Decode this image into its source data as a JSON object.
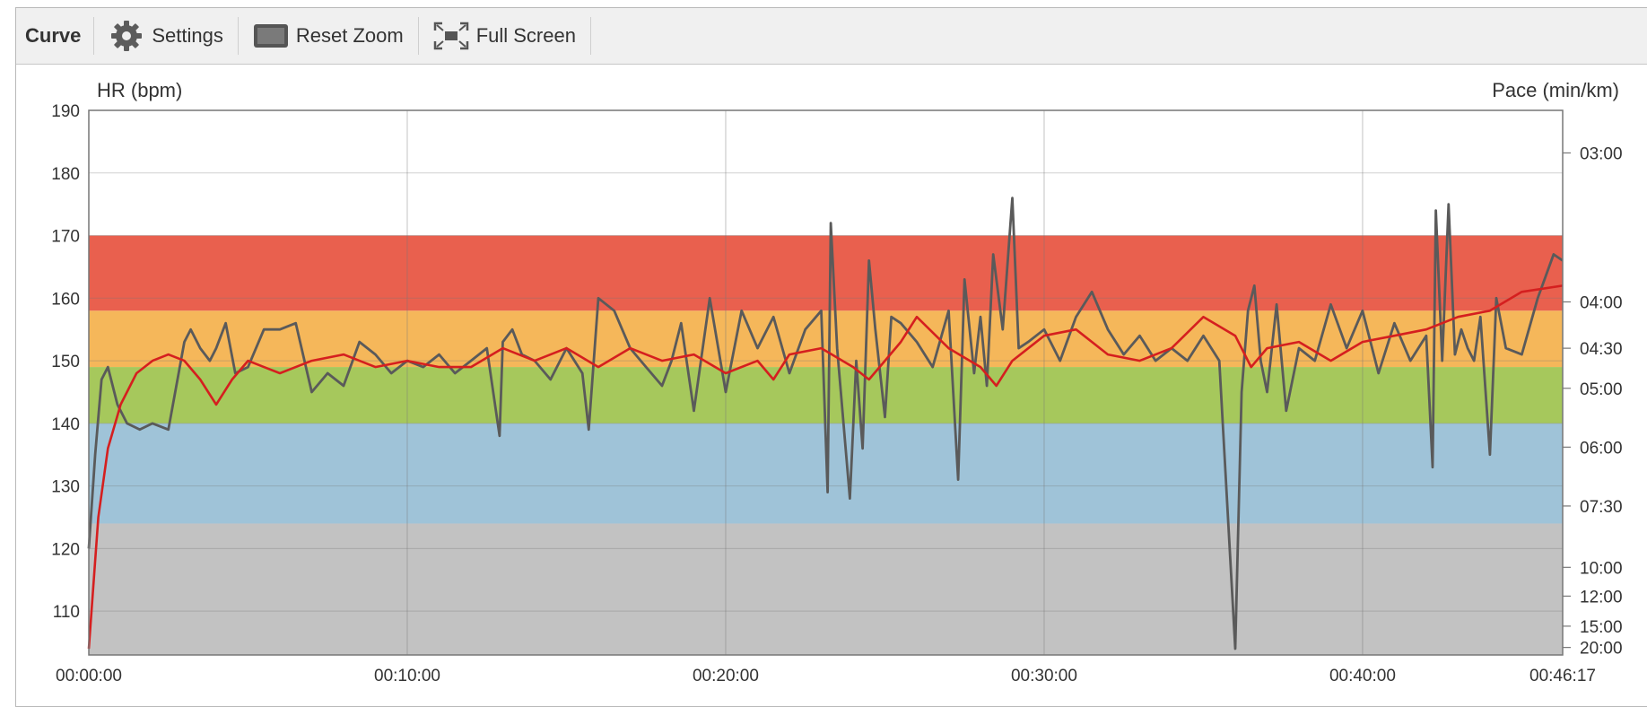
{
  "toolbar": {
    "title": "Curve",
    "settings_label": "Settings",
    "reset_zoom_label": "Reset Zoom",
    "full_screen_label": "Full Screen"
  },
  "icons": {
    "settings": "gear-icon",
    "reset_zoom": "reset-zoom-icon",
    "full_screen": "full-screen-icon"
  },
  "chart_data": {
    "type": "line",
    "x_unit": "elapsed time (hh:mm:ss)",
    "xlim": [
      "00:00:00",
      "00:46:17"
    ],
    "x_tick_labels": [
      "00:00:00",
      "00:10:00",
      "00:20:00",
      "00:30:00",
      "00:40:00",
      "00:46:17"
    ],
    "ylabel_left": "HR (bpm)",
    "ylim_left": [
      103,
      190
    ],
    "y_ticks_left": [
      110,
      120,
      130,
      140,
      150,
      160,
      170,
      180,
      190
    ],
    "ylabel_right": "Pace (min/km)",
    "y_tick_labels_right": [
      {
        "label": "03:00",
        "hr_equiv": 183.2
      },
      {
        "label": "04:00",
        "hr_equiv": 159.4
      },
      {
        "label": "04:30",
        "hr_equiv": 152.0
      },
      {
        "label": "05:00",
        "hr_equiv": 145.6
      },
      {
        "label": "06:00",
        "hr_equiv": 136.2
      },
      {
        "label": "07:30",
        "hr_equiv": 126.8
      },
      {
        "label": "10:00",
        "hr_equiv": 117.0
      },
      {
        "label": "12:00",
        "hr_equiv": 112.4
      },
      {
        "label": "15:00",
        "hr_equiv": 107.6
      },
      {
        "label": "20:00",
        "hr_equiv": 104.2
      }
    ],
    "grid": true,
    "zones": [
      {
        "from": 103,
        "to": 124,
        "color": "#c2c2c2"
      },
      {
        "from": 124,
        "to": 140,
        "color": "#9fc3d8"
      },
      {
        "from": 140,
        "to": 149,
        "color": "#a6c85c"
      },
      {
        "from": 149,
        "to": 158,
        "color": "#f5b75a"
      },
      {
        "from": 158,
        "to": 170,
        "color": "#e9604e"
      }
    ],
    "series": [
      {
        "color": "#d51f1f",
        "axis": "left",
        "x_minutes": [
          0,
          0.3,
          0.6,
          1.0,
          1.5,
          2.0,
          2.5,
          3.0,
          3.5,
          4.0,
          4.5,
          5.0,
          5.5,
          6.0,
          6.5,
          7.0,
          8.0,
          9.0,
          10.0,
          11.0,
          12.0,
          13.0,
          14.0,
          15.0,
          16.0,
          17.0,
          18.0,
          19.0,
          20.0,
          21.0,
          21.5,
          22.0,
          23.0,
          24.0,
          24.5,
          25.0,
          25.5,
          26.0,
          27.0,
          28.0,
          28.5,
          29.0,
          30.0,
          31.0,
          32.0,
          33.0,
          34.0,
          35.0,
          36.0,
          36.5,
          37.0,
          38.0,
          39.0,
          40.0,
          41.0,
          42.0,
          43.0,
          44.0,
          45.0,
          46.28
        ],
        "values": [
          104,
          125,
          136,
          143,
          148,
          150,
          151,
          150,
          147,
          143,
          147,
          150,
          149,
          148,
          149,
          150,
          151,
          149,
          150,
          149,
          149,
          152,
          150,
          152,
          149,
          152,
          150,
          151,
          148,
          150,
          147,
          151,
          152,
          149,
          147,
          150,
          153,
          157,
          152,
          149,
          146,
          150,
          154,
          155,
          151,
          150,
          152,
          157,
          154,
          149,
          152,
          153,
          150,
          153,
          154,
          155,
          157,
          158,
          161,
          162
        ]
      },
      {
        "color": "#5a5a5a",
        "axis": "right",
        "x_minutes": [
          0,
          0.2,
          0.4,
          0.6,
          0.9,
          1.2,
          1.6,
          2.0,
          2.5,
          3.0,
          3.2,
          3.5,
          3.8,
          4.0,
          4.3,
          4.6,
          5.0,
          5.5,
          6.0,
          6.5,
          7.0,
          7.5,
          8.0,
          8.5,
          9.0,
          9.5,
          10.0,
          10.5,
          11.0,
          11.5,
          12.0,
          12.5,
          12.9,
          13.0,
          13.3,
          13.6,
          14.0,
          14.5,
          15.0,
          15.5,
          15.7,
          16.0,
          16.5,
          17.0,
          17.5,
          18.0,
          18.3,
          18.6,
          19.0,
          19.5,
          20.0,
          20.5,
          21.0,
          21.5,
          22.0,
          22.5,
          23.0,
          23.2,
          23.3,
          23.5,
          23.7,
          23.9,
          24.1,
          24.3,
          24.5,
          24.7,
          25.0,
          25.2,
          25.5,
          26.0,
          26.5,
          27.0,
          27.3,
          27.5,
          27.8,
          28.0,
          28.2,
          28.4,
          28.7,
          29.0,
          29.2,
          29.5,
          30.0,
          30.5,
          31.0,
          31.5,
          32.0,
          32.5,
          33.0,
          33.5,
          34.0,
          34.5,
          35.0,
          35.5,
          36.0,
          36.2,
          36.4,
          36.6,
          36.8,
          37.0,
          37.3,
          37.6,
          38.0,
          38.5,
          39.0,
          39.5,
          40.0,
          40.5,
          41.0,
          41.5,
          42.0,
          42.2,
          42.3,
          42.5,
          42.7,
          42.9,
          43.1,
          43.3,
          43.5,
          43.7,
          44.0,
          44.2,
          44.5,
          45.0,
          45.5,
          46.0,
          46.28
        ],
        "values": [
          120,
          135,
          147,
          149,
          143,
          140,
          139,
          140,
          139,
          153,
          155,
          152,
          150,
          152,
          156,
          148,
          149,
          155,
          155,
          156,
          145,
          148,
          146,
          153,
          151,
          148,
          150,
          149,
          151,
          148,
          150,
          152,
          138,
          153,
          155,
          151,
          150,
          147,
          152,
          148,
          139,
          160,
          158,
          152,
          149,
          146,
          150,
          156,
          142,
          160,
          145,
          158,
          152,
          157,
          148,
          155,
          158,
          129,
          172,
          152,
          140,
          128,
          150,
          136,
          166,
          155,
          141,
          157,
          156,
          153,
          149,
          158,
          131,
          163,
          148,
          157,
          146,
          167,
          155,
          176,
          152,
          153,
          155,
          150,
          157,
          161,
          155,
          151,
          154,
          150,
          152,
          150,
          154,
          150,
          104,
          145,
          158,
          162,
          150,
          145,
          159,
          142,
          152,
          150,
          159,
          152,
          158,
          148,
          156,
          150,
          154,
          133,
          174,
          150,
          175,
          151,
          155,
          152,
          150,
          157,
          135,
          160,
          152,
          151,
          160,
          167,
          166
        ]
      }
    ]
  }
}
